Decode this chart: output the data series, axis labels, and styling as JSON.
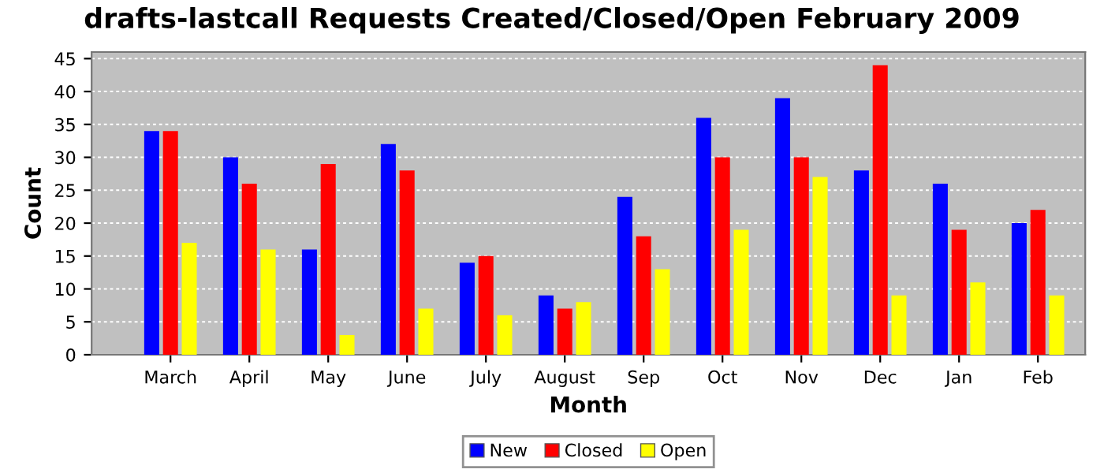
{
  "chart_data": {
    "type": "bar",
    "title": "drafts-lastcall Requests Created/Closed/Open February 2009",
    "xlabel": "Month",
    "ylabel": "Count",
    "categories": [
      "March",
      "April",
      "May",
      "June",
      "July",
      "August",
      "Sep",
      "Oct",
      "Nov",
      "Dec",
      "Jan",
      "Feb"
    ],
    "series": [
      {
        "name": "New",
        "color": "#0000ff",
        "values": [
          34,
          30,
          16,
          32,
          14,
          9,
          24,
          36,
          39,
          28,
          26,
          20
        ]
      },
      {
        "name": "Closed",
        "color": "#ff0000",
        "values": [
          34,
          26,
          29,
          28,
          15,
          7,
          18,
          30,
          30,
          44,
          19,
          22
        ]
      },
      {
        "name": "Open",
        "color": "#ffff00",
        "values": [
          17,
          16,
          3,
          7,
          6,
          8,
          13,
          19,
          27,
          9,
          11,
          9
        ]
      }
    ],
    "ylim": [
      0,
      46
    ],
    "yticks": [
      0,
      5,
      10,
      15,
      20,
      25,
      30,
      35,
      40,
      45
    ],
    "grid": "y",
    "legend": "bottom"
  }
}
